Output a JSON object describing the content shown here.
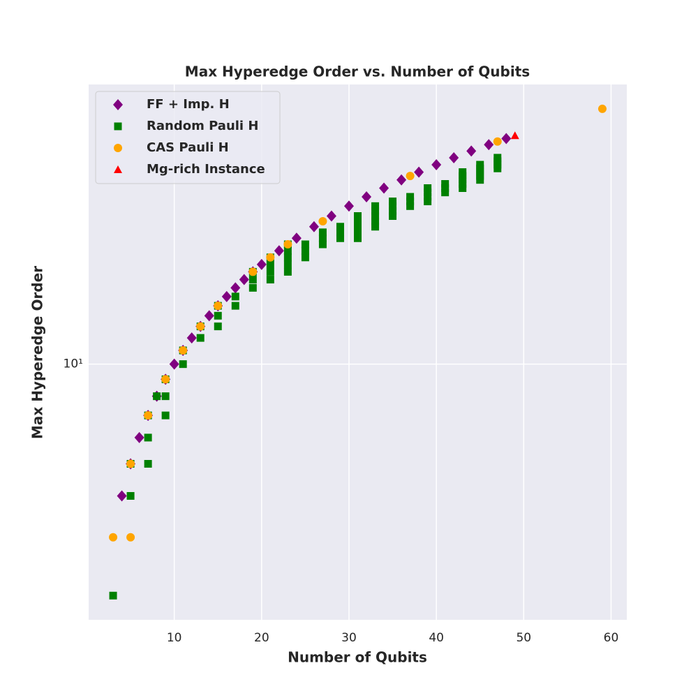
{
  "chart_data": {
    "type": "scatter",
    "title": "Max Hyperedge Order vs. Number of Qubits",
    "x_label": "Number of Qubits",
    "y_label": "Max Hyperedge Order",
    "xlim": [
      0.2,
      61.8
    ],
    "ylim": [
      1.69,
      69.9
    ],
    "y_scale": "log",
    "xticks": [
      10,
      20,
      30,
      40,
      50,
      60
    ],
    "yticks": [
      {
        "value": 10,
        "label": "10¹"
      }
    ],
    "grid": true,
    "legend": "upper left",
    "series": [
      {
        "name": "FF + Imp. H",
        "color": "#800080",
        "marker": "diamond",
        "x": [
          4,
          5,
          6,
          7,
          8,
          9,
          10,
          11,
          12,
          13,
          14,
          15,
          16,
          17,
          18,
          19,
          20,
          22,
          24,
          26,
          28,
          30,
          32,
          34,
          36,
          38,
          40,
          42,
          44,
          46,
          48
        ],
        "values": [
          4,
          5,
          6,
          7,
          8,
          9,
          10,
          11,
          12,
          13,
          14,
          15,
          16,
          17,
          18,
          19,
          20,
          22,
          24,
          26,
          28,
          30,
          32,
          34,
          36,
          38,
          40,
          42,
          44,
          46,
          48
        ]
      },
      {
        "name": "Random Pauli H",
        "color": "#008000",
        "marker": "square",
        "x": [
          3,
          5,
          5,
          7,
          7,
          7,
          8,
          9,
          9,
          9,
          11,
          11,
          13,
          13,
          15,
          15,
          15,
          17,
          17,
          19,
          19,
          19,
          21,
          21,
          21,
          21,
          23,
          23,
          23,
          23,
          23,
          25,
          25,
          25,
          27,
          27,
          27,
          29,
          29,
          29,
          31,
          31,
          31,
          31,
          31,
          33,
          33,
          33,
          33,
          33,
          35,
          35,
          35,
          35,
          37,
          37,
          37,
          39,
          39,
          39,
          39,
          41,
          41,
          41,
          43,
          43,
          43,
          43,
          43,
          45,
          45,
          45,
          45,
          45,
          47,
          47,
          47,
          47
        ],
        "values": [
          2,
          4,
          5,
          5,
          6,
          7,
          8,
          7,
          8,
          9,
          10,
          11,
          12,
          13,
          13,
          14,
          15,
          15,
          16,
          17,
          18,
          19,
          18,
          19,
          20,
          21,
          19,
          20,
          21,
          22,
          23,
          21,
          22,
          23,
          23,
          24,
          25,
          24,
          25,
          26,
          24,
          25,
          26,
          27,
          28,
          26,
          27,
          28,
          29,
          30,
          28,
          29,
          30,
          31,
          30,
          31,
          32,
          31,
          32,
          33,
          34,
          33,
          34,
          35,
          34,
          35,
          36,
          37,
          38,
          36,
          37,
          38,
          39,
          40,
          39,
          40,
          41,
          42
        ]
      },
      {
        "name": "CAS Pauli H",
        "color": "#FFA500",
        "marker": "circle",
        "x": [
          3,
          5,
          5,
          7,
          9,
          11,
          13,
          15,
          19,
          21,
          23,
          27,
          37,
          47,
          59
        ],
        "values": [
          3,
          3,
          5,
          7,
          9,
          11,
          13,
          15,
          19,
          21,
          23,
          27,
          37,
          47,
          59
        ]
      },
      {
        "name": "Mg-rich Instance",
        "color": "#FF0000",
        "marker": "triangle",
        "x": [
          49
        ],
        "values": [
          49
        ]
      }
    ]
  }
}
